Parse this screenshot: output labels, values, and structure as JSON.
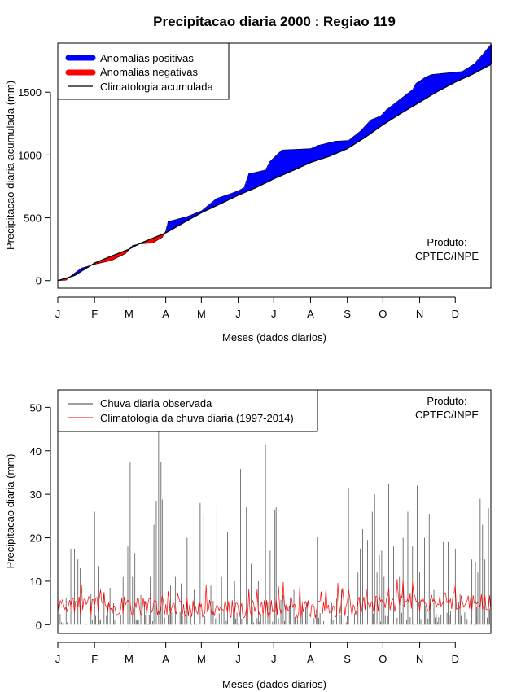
{
  "figure": {
    "title": "Precipitacao diaria 2000 : Regiao 119"
  },
  "chart_data": [
    {
      "type": "area",
      "title": "Precipitacao diaria 2000 : Regiao 119",
      "xlabel": "Meses (dados diarios)",
      "ylabel": "Precipitacao diaria acumulada (mm)",
      "credit_line1": "Produto:",
      "credit_line2": "CPTEC/INPE",
      "xlim": [
        1,
        366
      ],
      "ylim": [
        -60,
        1890
      ],
      "month_ticks": [
        {
          "label": "J",
          "day": 1
        },
        {
          "label": "F",
          "day": 32
        },
        {
          "label": "M",
          "day": 61
        },
        {
          "label": "A",
          "day": 92
        },
        {
          "label": "M",
          "day": 122
        },
        {
          "label": "J",
          "day": 153
        },
        {
          "label": "J",
          "day": 183
        },
        {
          "label": "A",
          "day": 214
        },
        {
          "label": "S",
          "day": 245
        },
        {
          "label": "O",
          "day": 275
        },
        {
          "label": "N",
          "day": 306
        },
        {
          "label": "D",
          "day": 336
        }
      ],
      "y_ticks": [
        "0",
        "500",
        "1000",
        "1500"
      ],
      "y_tick_values": [
        0,
        500,
        1000,
        1500
      ],
      "colors": {
        "positive": "#0000ff",
        "negative": "#ff0000",
        "climatology": "#000000"
      },
      "legend": {
        "position": "top-left",
        "entries": [
          "Anomalias positivas",
          "Anomalias negativas",
          "Climatologia acumulada"
        ]
      },
      "climatology_anchors": [
        [
          1,
          0
        ],
        [
          15,
          40
        ],
        [
          32,
          140
        ],
        [
          46,
          195
        ],
        [
          61,
          250
        ],
        [
          70,
          295
        ],
        [
          92,
          380
        ],
        [
          105,
          450
        ],
        [
          122,
          540
        ],
        [
          140,
          620
        ],
        [
          153,
          680
        ],
        [
          168,
          740
        ],
        [
          183,
          810
        ],
        [
          200,
          880
        ],
        [
          214,
          940
        ],
        [
          230,
          990
        ],
        [
          245,
          1050
        ],
        [
          260,
          1140
        ],
        [
          275,
          1240
        ],
        [
          290,
          1330
        ],
        [
          306,
          1420
        ],
        [
          320,
          1500
        ],
        [
          336,
          1580
        ],
        [
          350,
          1640
        ],
        [
          366,
          1720
        ]
      ],
      "observed_anchors": [
        [
          1,
          0
        ],
        [
          8,
          4
        ],
        [
          13,
          45
        ],
        [
          21,
          100
        ],
        [
          32,
          130
        ],
        [
          46,
          160
        ],
        [
          58,
          215
        ],
        [
          64,
          280
        ],
        [
          70,
          292
        ],
        [
          81,
          300
        ],
        [
          89,
          345
        ],
        [
          92,
          395
        ],
        [
          94,
          470
        ],
        [
          110,
          510
        ],
        [
          122,
          555
        ],
        [
          135,
          655
        ],
        [
          146,
          690
        ],
        [
          153,
          715
        ],
        [
          158,
          740
        ],
        [
          162,
          850
        ],
        [
          176,
          880
        ],
        [
          180,
          950
        ],
        [
          190,
          1040
        ],
        [
          214,
          1050
        ],
        [
          220,
          1075
        ],
        [
          235,
          1110
        ],
        [
          246,
          1115
        ],
        [
          256,
          1190
        ],
        [
          260,
          1230
        ],
        [
          265,
          1280
        ],
        [
          273,
          1310
        ],
        [
          278,
          1360
        ],
        [
          300,
          1520
        ],
        [
          303,
          1570
        ],
        [
          311,
          1620
        ],
        [
          316,
          1640
        ],
        [
          326,
          1650
        ],
        [
          342,
          1665
        ],
        [
          352,
          1725
        ],
        [
          360,
          1810
        ],
        [
          366,
          1880
        ]
      ]
    },
    {
      "type": "line",
      "xlabel": "Meses (dados diarios)",
      "ylabel": "Precipitacao diaria (mm)",
      "credit_line1": "Produto:",
      "credit_line2": "CPTEC/INPE",
      "xlim": [
        1,
        366
      ],
      "ylim": [
        -2,
        54
      ],
      "month_ticks": [
        {
          "label": "J",
          "day": 1
        },
        {
          "label": "F",
          "day": 32
        },
        {
          "label": "M",
          "day": 61
        },
        {
          "label": "A",
          "day": 92
        },
        {
          "label": "M",
          "day": 122
        },
        {
          "label": "J",
          "day": 153
        },
        {
          "label": "J",
          "day": 183
        },
        {
          "label": "A",
          "day": 214
        },
        {
          "label": "S",
          "day": 245
        },
        {
          "label": "O",
          "day": 275
        },
        {
          "label": "N",
          "day": 306
        },
        {
          "label": "D",
          "day": 336
        }
      ],
      "y_ticks": [
        "0",
        "10",
        "20",
        "30",
        "40",
        "50"
      ],
      "y_tick_values": [
        0,
        10,
        20,
        30,
        40,
        50
      ],
      "colors": {
        "observed": "#404040",
        "climatology": "#ff0000"
      },
      "legend": {
        "position": "top-left",
        "entries": [
          "Chuva diaria observada",
          "Climatologia da chuva diaria (1997-2014)"
        ]
      },
      "observed_peaks": [
        [
          12,
          17.5
        ],
        [
          13,
          11
        ],
        [
          15,
          17.5
        ],
        [
          17,
          16
        ],
        [
          18,
          15
        ],
        [
          20,
          13
        ],
        [
          29,
          7
        ],
        [
          32,
          26
        ],
        [
          35,
          13.5
        ],
        [
          40,
          7
        ],
        [
          45,
          8.5
        ],
        [
          50,
          7
        ],
        [
          56,
          11
        ],
        [
          60,
          18
        ],
        [
          62,
          37.3
        ],
        [
          64,
          11
        ],
        [
          66,
          16.5
        ],
        [
          79,
          11
        ],
        [
          82,
          23
        ],
        [
          84,
          28.5
        ],
        [
          86,
          45.8
        ],
        [
          88,
          37.5
        ],
        [
          89,
          28.8
        ],
        [
          96,
          9
        ],
        [
          100,
          11
        ],
        [
          105,
          9.5
        ],
        [
          109,
          21.5
        ],
        [
          110,
          20
        ],
        [
          116,
          8
        ],
        [
          121,
          28
        ],
        [
          124,
          25.5
        ],
        [
          130,
          9
        ],
        [
          135,
          27.5
        ],
        [
          139,
          11
        ],
        [
          144,
          21.3
        ],
        [
          150,
          10
        ],
        [
          155,
          35.8
        ],
        [
          157,
          38.5
        ],
        [
          160,
          27
        ],
        [
          164,
          14
        ],
        [
          170,
          10
        ],
        [
          176,
          41.5
        ],
        [
          180,
          17
        ],
        [
          184,
          26.5
        ],
        [
          185,
          27
        ],
        [
          190,
          5
        ],
        [
          200,
          8
        ],
        [
          210,
          4
        ],
        [
          220,
          20.2
        ],
        [
          232,
          5
        ],
        [
          236,
          6
        ],
        [
          240,
          8
        ],
        [
          246,
          31.5
        ],
        [
          254,
          12
        ],
        [
          256,
          17.5
        ],
        [
          258,
          22
        ],
        [
          262,
          19.5
        ],
        [
          266,
          26
        ],
        [
          268,
          30
        ],
        [
          270,
          12
        ],
        [
          272,
          16
        ],
        [
          274,
          17
        ],
        [
          276,
          11
        ],
        [
          280,
          32.5
        ],
        [
          284,
          18
        ],
        [
          286,
          22
        ],
        [
          289,
          11
        ],
        [
          292,
          20
        ],
        [
          296,
          26
        ],
        [
          300,
          18
        ],
        [
          304,
          32
        ],
        [
          306,
          12
        ],
        [
          310,
          20
        ],
        [
          314,
          25.5
        ],
        [
          318,
          8
        ],
        [
          326,
          19
        ],
        [
          330,
          19
        ],
        [
          336,
          17.5
        ],
        [
          340,
          7
        ],
        [
          350,
          15
        ],
        [
          353,
          14.5
        ],
        [
          355,
          12
        ],
        [
          357,
          29
        ],
        [
          359,
          23
        ],
        [
          361,
          15
        ],
        [
          364,
          26.8
        ],
        [
          366,
          9
        ]
      ]
    }
  ]
}
